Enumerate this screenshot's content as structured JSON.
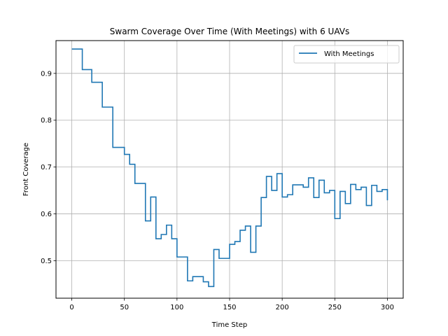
{
  "chart_data": {
    "type": "line",
    "title": "Swarm Coverage Over Time (With Meetings) with 6 UAVs",
    "xlabel": "Time Step",
    "ylabel": "Front Coverage",
    "xlim": [
      -15,
      315
    ],
    "ylim": [
      0.42,
      0.97
    ],
    "xticks": [
      0,
      50,
      100,
      150,
      200,
      250,
      300
    ],
    "yticks": [
      0.5,
      0.6,
      0.7,
      0.8,
      0.9
    ],
    "grid": true,
    "legend_position": "top-right",
    "series": [
      {
        "name": "With Meetings",
        "color": "#1f77b4",
        "step": true,
        "points": [
          [
            0,
            0.952
          ],
          [
            10,
            0.908
          ],
          [
            19,
            0.881
          ],
          [
            29,
            0.828
          ],
          [
            39,
            0.742
          ],
          [
            50,
            0.727
          ],
          [
            55,
            0.706
          ],
          [
            60,
            0.665
          ],
          [
            70,
            0.585
          ],
          [
            75,
            0.636
          ],
          [
            80,
            0.547
          ],
          [
            85,
            0.556
          ],
          [
            90,
            0.576
          ],
          [
            95,
            0.547
          ],
          [
            100,
            0.508
          ],
          [
            110,
            0.457
          ],
          [
            115,
            0.466
          ],
          [
            125,
            0.455
          ],
          [
            130,
            0.445
          ],
          [
            135,
            0.524
          ],
          [
            140,
            0.505
          ],
          [
            150,
            0.535
          ],
          [
            155,
            0.541
          ],
          [
            160,
            0.565
          ],
          [
            165,
            0.574
          ],
          [
            170,
            0.518
          ],
          [
            175,
            0.574
          ],
          [
            180,
            0.635
          ],
          [
            185,
            0.68
          ],
          [
            190,
            0.65
          ],
          [
            195,
            0.686
          ],
          [
            200,
            0.636
          ],
          [
            205,
            0.641
          ],
          [
            210,
            0.662
          ],
          [
            220,
            0.657
          ],
          [
            225,
            0.677
          ],
          [
            230,
            0.635
          ],
          [
            235,
            0.672
          ],
          [
            240,
            0.645
          ],
          [
            245,
            0.65
          ],
          [
            250,
            0.59
          ],
          [
            255,
            0.648
          ],
          [
            260,
            0.622
          ],
          [
            265,
            0.663
          ],
          [
            270,
            0.652
          ],
          [
            275,
            0.657
          ],
          [
            280,
            0.618
          ],
          [
            285,
            0.661
          ],
          [
            290,
            0.648
          ],
          [
            295,
            0.652
          ],
          [
            300,
            0.629
          ]
        ]
      }
    ]
  }
}
